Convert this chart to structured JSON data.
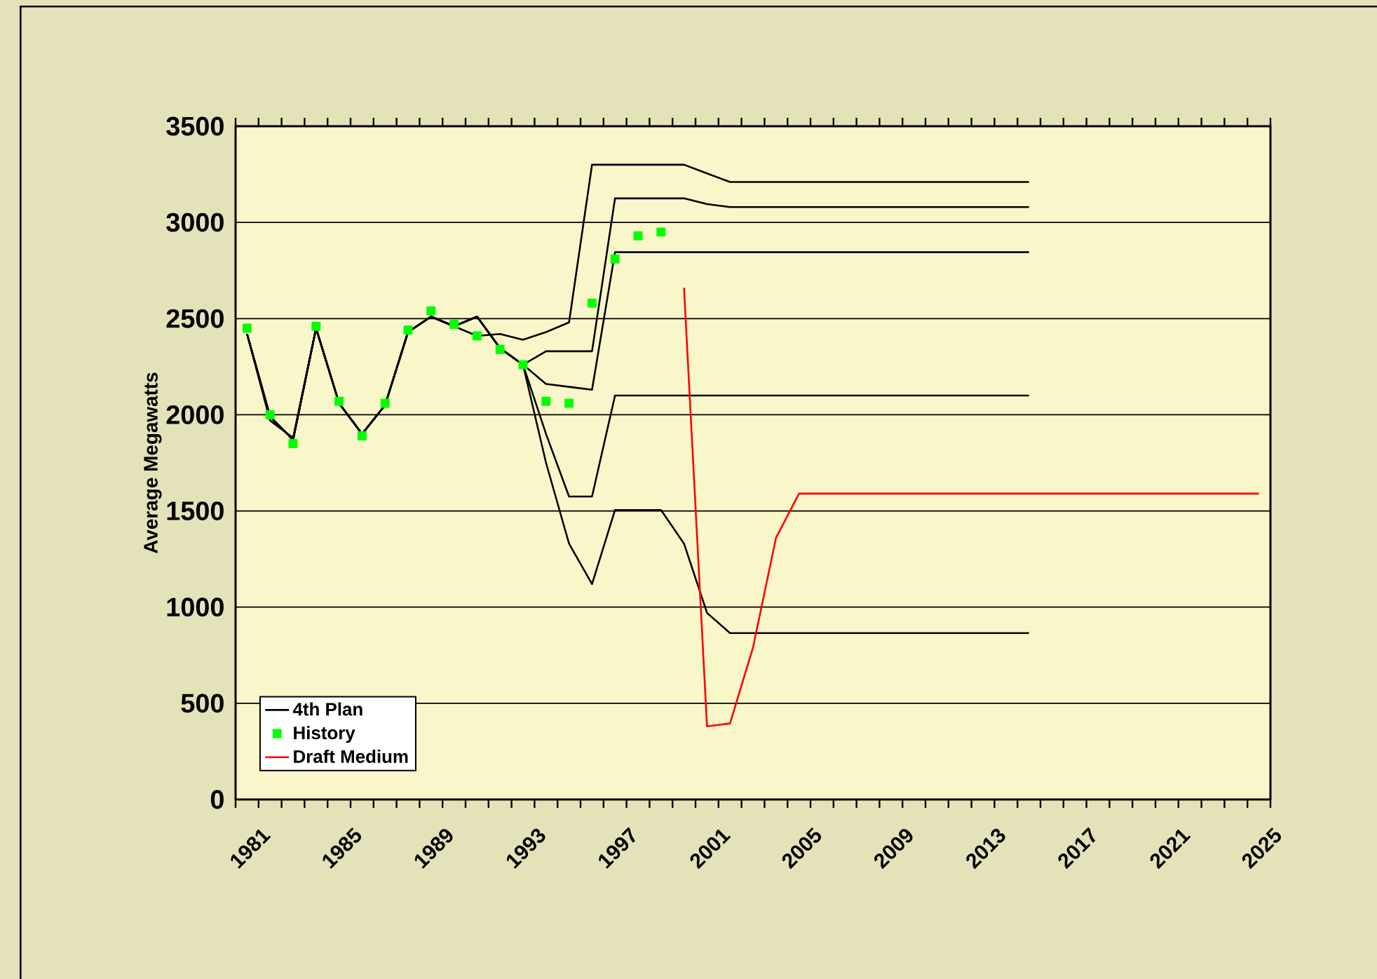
{
  "chart_data": {
    "type": "line",
    "ylabel": "Average Megawatts",
    "categories": [
      "1981",
      null,
      null,
      null,
      "1985",
      null,
      null,
      null,
      "1989",
      null,
      null,
      null,
      "1993",
      null,
      null,
      null,
      "1997",
      null,
      null,
      null,
      "2001",
      null,
      null,
      null,
      "2005",
      null,
      null,
      null,
      "2009",
      null,
      null,
      null,
      "2013",
      null,
      null,
      null,
      "2017",
      null,
      null,
      null,
      "2021",
      null,
      null,
      null,
      "2025"
    ],
    "ylim": [
      0,
      3500
    ],
    "yticks": [
      0,
      500,
      1000,
      1500,
      2000,
      2500,
      3000,
      3500
    ],
    "grid": "y",
    "legend": "bottom left",
    "series": [
      {
        "name": "4th Plan",
        "type": "line",
        "marker": "none",
        "color": "#000000",
        "values": [
          2420,
          1970,
          1880,
          2450,
          2060,
          1900,
          2050,
          2430,
          2510,
          2460,
          2410,
          2420,
          2390,
          2430,
          2480,
          3300,
          3300,
          3300,
          3300,
          3300,
          3255,
          3210,
          3210,
          3210,
          3210,
          3210,
          3210,
          3210,
          3210,
          3210,
          3210,
          3210,
          3210,
          3210,
          3210,
          null,
          null,
          null,
          null,
          null,
          null,
          null,
          null,
          null,
          null
        ]
      },
      {
        "type": "line",
        "marker": "none",
        "color": "#010101",
        "values": [
          2420,
          1990,
          1870,
          2450,
          2060,
          1900,
          2050,
          2430,
          2510,
          2460,
          2510,
          2346,
          2260,
          2330,
          2330,
          2330,
          3125,
          3125,
          3125,
          3125,
          3095,
          3080,
          3080,
          3080,
          3080,
          3080,
          3080,
          3080,
          3080,
          3080,
          3080,
          3080,
          3080,
          3080,
          3080,
          null,
          null,
          null,
          null,
          null,
          null,
          null,
          null,
          null,
          null
        ]
      },
      {
        "type": "line",
        "marker": "none",
        "color": "#020202",
        "values": [
          2420,
          1990,
          1870,
          2450,
          2060,
          1900,
          2050,
          2430,
          2510,
          2460,
          2510,
          2346,
          2260,
          2160,
          2145,
          2130,
          2845,
          2845,
          2845,
          2845,
          2845,
          2845,
          2845,
          2845,
          2845,
          2845,
          2845,
          2845,
          2845,
          2845,
          2845,
          2845,
          2845,
          2845,
          2845,
          null,
          null,
          null,
          null,
          null,
          null,
          null,
          null,
          null,
          null
        ]
      },
      {
        "type": "line",
        "marker": "none",
        "color": "#030303",
        "values": [
          2420,
          1990,
          1870,
          2450,
          2060,
          1900,
          2050,
          2430,
          2510,
          2460,
          2510,
          2346,
          2260,
          1900,
          1575,
          1575,
          2100,
          2100,
          2100,
          2100,
          2100,
          2100,
          2100,
          2100,
          2100,
          2100,
          2100,
          2100,
          2100,
          2100,
          2100,
          2100,
          2100,
          2100,
          2100,
          null,
          null,
          null,
          null,
          null,
          null,
          null,
          null,
          null,
          null
        ]
      },
      {
        "type": "line",
        "marker": "none",
        "color": "#040404",
        "values": [
          2420,
          1990,
          1870,
          2450,
          2060,
          1900,
          2050,
          2430,
          2510,
          2460,
          2510,
          2346,
          2260,
          1750,
          1330,
          1120,
          1505,
          1505,
          1505,
          1330,
          970,
          865,
          865,
          865,
          865,
          865,
          865,
          865,
          865,
          865,
          865,
          865,
          865,
          865,
          865,
          null,
          null,
          null,
          null,
          null,
          null,
          null,
          null,
          null,
          null
        ]
      },
      {
        "name": "History",
        "type": "scatter",
        "marker": "square",
        "color": "#00ff00",
        "values": [
          2450,
          2000,
          1850,
          2460,
          2070,
          1890,
          2060,
          2440,
          2540,
          2470,
          2410,
          2340,
          2260,
          2070,
          2060,
          2580,
          2810,
          2930,
          2950,
          null,
          null,
          null,
          null,
          null,
          null,
          null,
          null,
          null,
          null,
          null,
          null,
          null,
          null,
          null,
          null,
          null,
          null,
          null,
          null,
          null,
          null,
          null,
          null,
          null,
          null
        ]
      },
      {
        "name": "Draft Medium",
        "type": "line",
        "marker": "none",
        "color": "#ff0000",
        "values": [
          null,
          null,
          null,
          null,
          null,
          null,
          null,
          null,
          null,
          null,
          null,
          null,
          null,
          null,
          null,
          null,
          null,
          null,
          null,
          2660,
          380,
          395,
          790,
          1360,
          1590,
          1590,
          1590,
          1590,
          1590,
          1590,
          1590,
          1590,
          1590,
          1590,
          1590,
          1590,
          1590,
          1590,
          1590,
          1590,
          1590,
          1590,
          1590,
          1590,
          1590
        ]
      }
    ]
  }
}
